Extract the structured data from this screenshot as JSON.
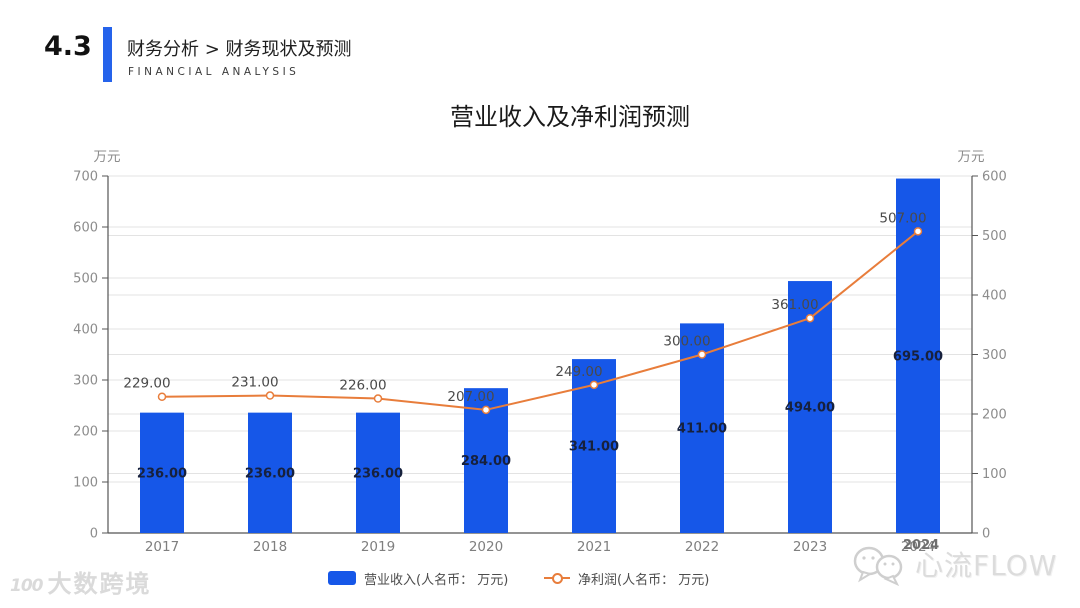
{
  "header": {
    "section_number": "4.3",
    "breadcrumb": "财务分析 > 财务现状及预测",
    "subtitle": "FINANCIAL ANALYSIS"
  },
  "chart_data": {
    "type": "bar",
    "combo": "bar+line",
    "title": "营业收入及净利润预测",
    "categories": [
      "2017",
      "2018",
      "2019",
      "2020",
      "2021",
      "2022",
      "2023",
      "2024"
    ],
    "series": [
      {
        "name": "营业收入(人名币： 万元)",
        "type": "bar",
        "axis": "left",
        "values": [
          236,
          236,
          236,
          284,
          341,
          411,
          494,
          695
        ],
        "value_labels": [
          "236.00",
          "236.00",
          "236.00",
          "284.00",
          "341.00",
          "411.00",
          "494.00",
          "695.00"
        ]
      },
      {
        "name": "净利润(人名币： 万元)",
        "type": "line",
        "axis": "right",
        "values": [
          229,
          231,
          226,
          207,
          249,
          300,
          361,
          507
        ],
        "value_labels": [
          "229.00",
          "231.00",
          "226.00",
          "207.00",
          "249.00",
          "300.00",
          "361.00",
          "507.00"
        ]
      }
    ],
    "left_axis": {
      "unit": "万元",
      "min": 0,
      "max": 700,
      "step": 100,
      "ticks": [
        0,
        100,
        200,
        300,
        400,
        500,
        600,
        700
      ]
    },
    "right_axis": {
      "unit": "万元",
      "min": 0,
      "max": 600,
      "step": 100,
      "ticks": [
        0,
        100,
        200,
        300,
        400,
        500,
        600
      ]
    },
    "grid": true,
    "legend_position": "bottom"
  },
  "legend": {
    "items": [
      {
        "label": "营业收入(人名币： 万元)",
        "marker": "square"
      },
      {
        "label": "净利润(人名币： 万元)",
        "marker": "line-circle"
      }
    ]
  },
  "watermarks": {
    "left": {
      "logo_text": "100",
      "text": "大数跨境"
    },
    "right": {
      "year": "2024",
      "text": "心流FLOW"
    }
  },
  "colors": {
    "bar": "#1657E8",
    "line": "#E87D3B",
    "accent": "#2563EB",
    "grid": "#E3E3E3",
    "axis_line": "#555555",
    "tick_label": "#8C8C8C",
    "bar_value": "#17213D",
    "line_value": "#4A4A4A",
    "x_label": "#7F7F7F",
    "legend_text": "#4D4D4D"
  }
}
